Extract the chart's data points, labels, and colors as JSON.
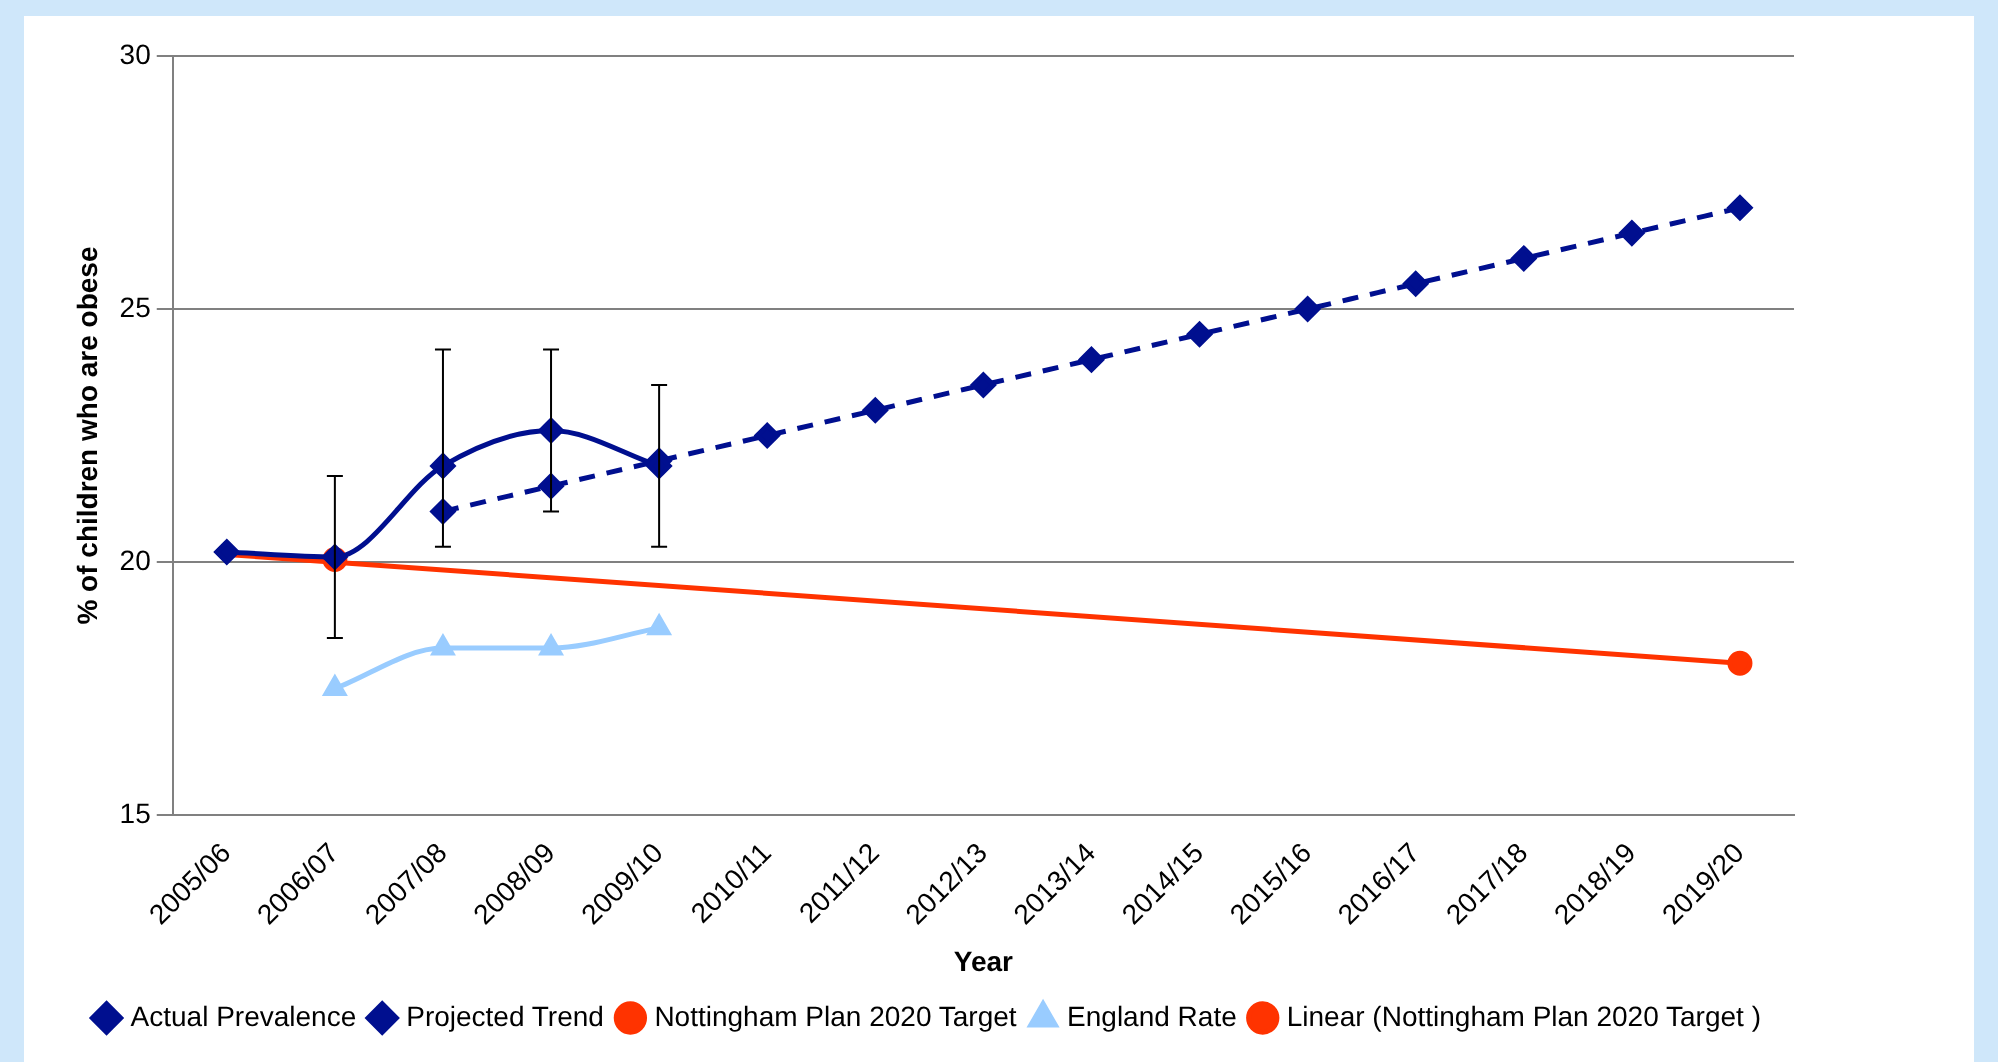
{
  "chart_data": {
    "type": "line",
    "xlabel": "Year",
    "ylabel": "% of children who are obese",
    "categories": [
      "2005/06",
      "2006/07",
      "2007/08",
      "2008/09",
      "2009/10",
      "2010/11",
      "2011/12",
      "2012/13",
      "2013/14",
      "2014/15",
      "2015/16",
      "2016/17",
      "2017/18",
      "2018/19",
      "2019/20"
    ],
    "ylim": [
      15,
      30
    ],
    "yticks": [
      15,
      20,
      25,
      30
    ],
    "grid": "y",
    "legend": "bottom",
    "series": [
      {
        "name": "Actual Prevalence",
        "color": "#000f8f",
        "marker": "diamond",
        "line_style": "solid",
        "x": [
          "2005/06",
          "2006/07",
          "2007/08",
          "2008/09",
          "2009/10"
        ],
        "values": [
          20.2,
          20.1,
          21.9,
          22.6,
          21.9
        ],
        "errors": [
          null,
          [
            18.5,
            21.7
          ],
          [
            20.3,
            24.2
          ],
          [
            21.0,
            24.2
          ],
          [
            20.3,
            23.5
          ]
        ]
      },
      {
        "name": "Projected Trend",
        "color": "#000f8f",
        "marker": "diamond",
        "line_style": "dashed",
        "x": [
          "2007/08",
          "2008/09",
          "2009/10",
          "2010/11",
          "2011/12",
          "2012/13",
          "2013/14",
          "2014/15",
          "2015/16",
          "2016/17",
          "2017/18",
          "2018/19",
          "2019/20"
        ],
        "values": [
          21,
          21.5,
          22,
          22.5,
          23,
          23.5,
          24,
          24.5,
          25,
          25.5,
          26,
          26.5,
          27
        ]
      },
      {
        "name": "Nottingham Plan 2020 Target",
        "type": "scatter",
        "color": "#ff3300",
        "marker": "circle",
        "x": [
          "2006/07",
          "2019/20"
        ],
        "values": [
          20.05,
          18
        ]
      },
      {
        "name": "England Rate",
        "color": "#99ccff",
        "marker": "triangle",
        "line_style": "solid",
        "x": [
          "2006/07",
          "2007/08",
          "2008/09",
          "2009/10"
        ],
        "values": [
          17.5,
          18.3,
          18.3,
          18.7
        ]
      },
      {
        "name": "Linear (Nottingham Plan 2020 Target )",
        "color": "#ff3300",
        "marker": "none",
        "line_style": "solid",
        "x": [
          "2005/06",
          "2019/20"
        ],
        "values": [
          20.15,
          18
        ]
      }
    ]
  }
}
